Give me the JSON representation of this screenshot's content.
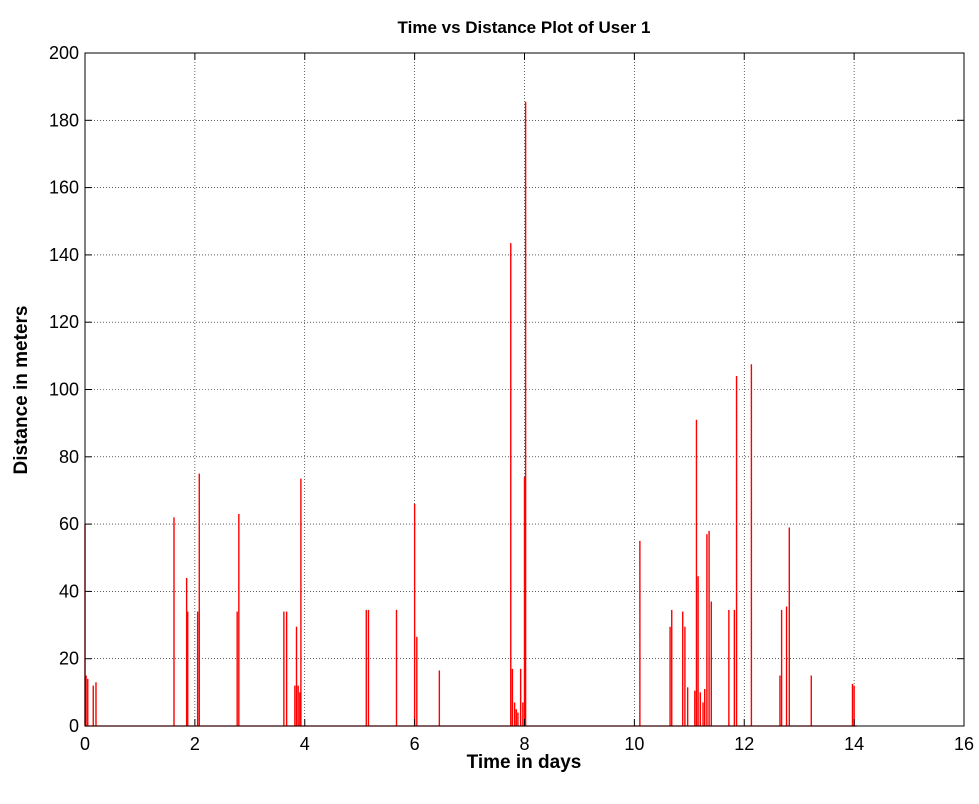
{
  "chart_data": {
    "type": "line",
    "title": "Time vs Distance Plot of User 1",
    "xlabel": "Time in days",
    "ylabel": "Distance in meters",
    "xlim": [
      0,
      16
    ],
    "ylim": [
      0,
      200
    ],
    "xticks": [
      0,
      2,
      4,
      6,
      8,
      10,
      12,
      14,
      16
    ],
    "yticks": [
      0,
      20,
      40,
      60,
      80,
      100,
      120,
      140,
      160,
      180,
      200
    ],
    "grid": true,
    "series": [
      {
        "color": "#ff0000",
        "spikes": [
          [
            0.0,
            60
          ],
          [
            0.02,
            15
          ],
          [
            0.05,
            14
          ],
          [
            0.15,
            12
          ],
          [
            0.2,
            13
          ],
          [
            1.62,
            62
          ],
          [
            1.85,
            44
          ],
          [
            1.87,
            34
          ],
          [
            2.05,
            34
          ],
          [
            2.08,
            75
          ],
          [
            2.77,
            34
          ],
          [
            2.8,
            63
          ],
          [
            3.62,
            34
          ],
          [
            3.67,
            34
          ],
          [
            3.82,
            12
          ],
          [
            3.85,
            29.5
          ],
          [
            3.88,
            12
          ],
          [
            3.91,
            10
          ],
          [
            3.93,
            73.5
          ],
          [
            5.12,
            34.5
          ],
          [
            5.16,
            34.5
          ],
          [
            5.67,
            34.5
          ],
          [
            6.0,
            66
          ],
          [
            6.04,
            26.5
          ],
          [
            6.45,
            16.5
          ],
          [
            7.75,
            143.5
          ],
          [
            7.78,
            17
          ],
          [
            7.82,
            7
          ],
          [
            7.85,
            5
          ],
          [
            7.88,
            4
          ],
          [
            7.93,
            17
          ],
          [
            7.97,
            7
          ],
          [
            8.0,
            74
          ],
          [
            8.02,
            185.5
          ],
          [
            10.1,
            55
          ],
          [
            10.65,
            29.5
          ],
          [
            10.68,
            34.5
          ],
          [
            10.88,
            34
          ],
          [
            10.92,
            29.5
          ],
          [
            10.97,
            11.5
          ],
          [
            11.1,
            10.5
          ],
          [
            11.13,
            91
          ],
          [
            11.16,
            44.5
          ],
          [
            11.2,
            10
          ],
          [
            11.25,
            7
          ],
          [
            11.28,
            11
          ],
          [
            11.32,
            57
          ],
          [
            11.36,
            58
          ],
          [
            11.4,
            37
          ],
          [
            11.72,
            34.5
          ],
          [
            11.82,
            34.5
          ],
          [
            11.86,
            104
          ],
          [
            12.13,
            107.5
          ],
          [
            12.65,
            15
          ],
          [
            12.68,
            34.5
          ],
          [
            12.77,
            35.5
          ],
          [
            12.82,
            59
          ],
          [
            13.22,
            15
          ],
          [
            13.97,
            12.5
          ],
          [
            14.0,
            12
          ]
        ]
      }
    ]
  }
}
